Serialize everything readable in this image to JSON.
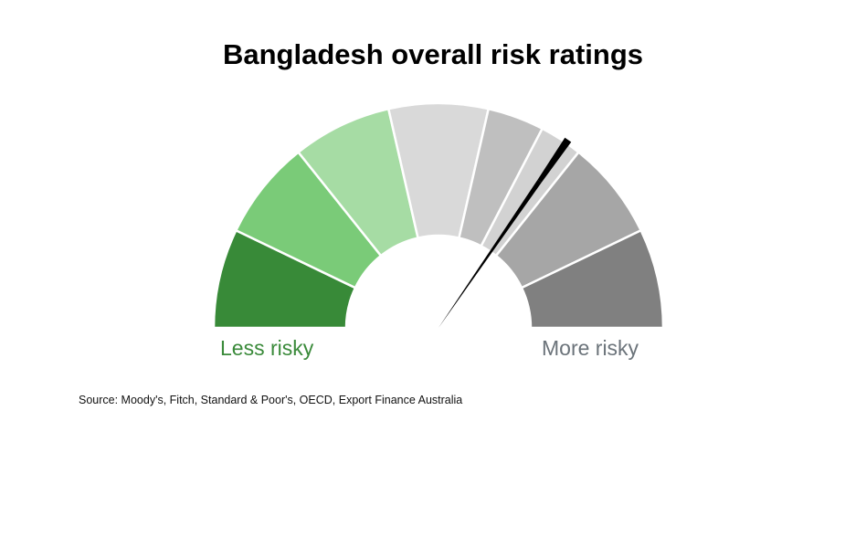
{
  "chart_data": {
    "type": "gauge",
    "title": "Bangladesh overall risk ratings",
    "left_label": "Less risky",
    "right_label": "More risky",
    "source": "Source: Moody's, Fitch, Standard & Poor's, OECD, Export Finance Australia",
    "segments": [
      {
        "color": "#388a38",
        "span": 1
      },
      {
        "color": "#7acb78",
        "span": 1
      },
      {
        "color": "#a6dca4",
        "span": 1
      },
      {
        "color": "#d9d9d9",
        "span": 1
      },
      {
        "color": "#bfbfbf",
        "span": 0.57
      },
      {
        "color": "#d2d2d2",
        "span": 0.43
      },
      {
        "color": "#a6a6a6",
        "span": 1
      },
      {
        "color": "#808080",
        "span": 1
      }
    ],
    "marker_fraction": 0.692,
    "needle_color": "#000000"
  }
}
